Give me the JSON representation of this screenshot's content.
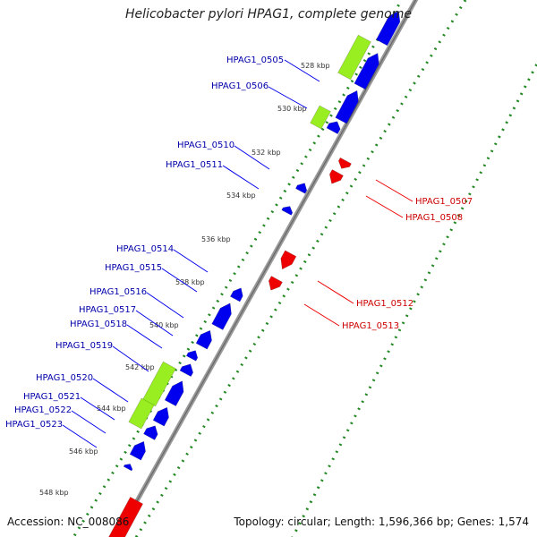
{
  "title": "Helicobacter pylori HPAG1, complete genome",
  "accession": "Accession: NC_008086",
  "summary": "Topology: circular; Length: 1,596,366 bp; Genes: 1,574",
  "colors": {
    "forward_gene": "#0000ee",
    "reverse_gene": "#ee0000",
    "rna_feature": "#99ee22",
    "backbone": "#999999",
    "ticks_forward": "#228822",
    "label_forward": "#0000aa",
    "label_reverse": "#cc0000"
  },
  "ruler_labels": [
    "528 kbp",
    "530 kbp",
    "532 kbp",
    "534 kbp",
    "536 kbp",
    "538 kbp",
    "540 kbp",
    "542 kbp",
    "544 kbp",
    "546 kbp",
    "548 kbp"
  ],
  "forward_gene_labels": [
    "HPAG1_0505",
    "HPAG1_0506",
    "HPAG1_0510",
    "HPAG1_0511",
    "HPAG1_0514",
    "HPAG1_0515",
    "HPAG1_0516",
    "HPAG1_0517",
    "HPAG1_0518",
    "HPAG1_0519",
    "HPAG1_0520",
    "HPAG1_0521",
    "HPAG1_0522",
    "HPAG1_0523"
  ],
  "reverse_gene_labels": [
    "HPAG1_0507",
    "HPAG1_0508",
    "HPAG1_0512",
    "HPAG1_0513"
  ]
}
